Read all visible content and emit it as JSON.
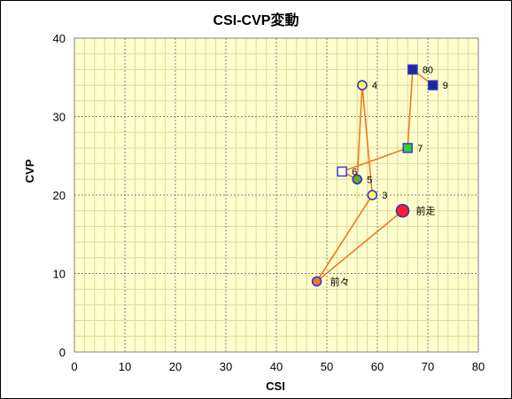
{
  "chart_data": {
    "type": "scatter",
    "title": "CSI-CVP変動",
    "xlabel": "CSI",
    "ylabel": "CVP",
    "xlim": [
      0,
      80
    ],
    "ylim": [
      0,
      40
    ],
    "xticks": [
      0,
      10,
      20,
      30,
      40,
      50,
      60,
      70,
      80
    ],
    "yticks": [
      0,
      10,
      20,
      30,
      40
    ],
    "grid": true,
    "colors": {
      "plot_bg": "#ffffcc",
      "grid_major": "#7f7f7f",
      "grid_minor": "#d8d8a0",
      "line": "#f07820",
      "marker_edge": "#3333cc"
    },
    "points": [
      {
        "label": "前々",
        "x": 48,
        "y": 9,
        "marker": "circle",
        "fill": "#f07830"
      },
      {
        "label": "前走",
        "x": 65,
        "y": 18,
        "marker": "circle-large",
        "fill": "#ff2020"
      },
      {
        "label": "3",
        "x": 59,
        "y": 20,
        "marker": "circle",
        "fill": "#ffff66"
      },
      {
        "label": "4",
        "x": 57,
        "y": 34,
        "marker": "circle",
        "fill": "#ffff66"
      },
      {
        "label": "5",
        "x": 56,
        "y": 22,
        "marker": "circle",
        "fill": "#66aa33"
      },
      {
        "label": "6",
        "x": 53,
        "y": 23,
        "marker": "square",
        "fill": "#ffffff"
      },
      {
        "label": "7",
        "x": 66,
        "y": 26,
        "marker": "square",
        "fill": "#33cc33"
      },
      {
        "label": "8",
        "x": 67,
        "y": 36,
        "marker": "square",
        "fill": "#1a2a99"
      },
      {
        "label": "9",
        "x": 71,
        "y": 34,
        "marker": "square",
        "fill": "#1a2a99"
      },
      {
        "label": "0",
        "x": 67,
        "y": 36,
        "marker": "square",
        "fill": "#1a2a99"
      }
    ],
    "line_order": [
      "前々",
      "前走",
      "前々",
      "3",
      "4",
      "5",
      "6",
      "7",
      "8",
      "9"
    ]
  }
}
